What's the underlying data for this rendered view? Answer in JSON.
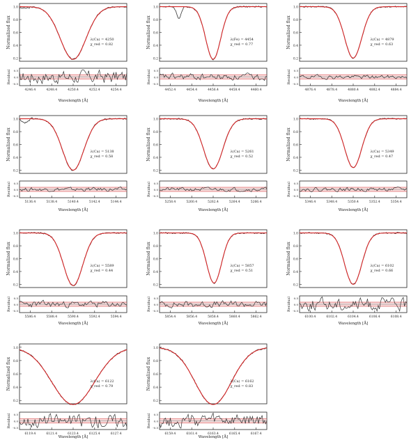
{
  "labels": {
    "ylabel_top": "Normalized flux",
    "ylabel_bottom": "Residual",
    "xlabel": "Wavelength [Å]"
  },
  "colors": {
    "observed": "#333333",
    "model": "#d62728",
    "band": "#e8a0a0"
  },
  "chart_data": [
    {
      "type": "line",
      "annotation": [
        "λ(Ca) = 4250",
        "χ_red = 0.82"
      ],
      "xticks": [
        "4246.4",
        "4248.4",
        "4250.4",
        "4252.4",
        "4254.4"
      ],
      "yticks_top": [
        "1.0",
        "0.8",
        "0.6",
        "0.4",
        "0.2"
      ],
      "ylim_top": [
        0.15,
        1.05
      ],
      "depth": 0.82,
      "width": 0.12,
      "asym": 0.0,
      "residual": "noisy_high"
    },
    {
      "type": "line",
      "annotation": [
        "λ(Fe) = 4454",
        "χ_red = 0.77"
      ],
      "xticks": [
        "4452.4",
        "4454.4",
        "4456.4",
        "4458.4",
        "4460.4"
      ],
      "yticks_top": [
        "1.0",
        "0.8",
        "0.6",
        "0.4",
        "0.2"
      ],
      "ylim_top": [
        0.15,
        1.05
      ],
      "depth": 0.82,
      "width": 0.07,
      "asym": 0.0,
      "residual": "medium"
    },
    {
      "type": "line",
      "annotation": [
        "λ(Ca) = 4879",
        "χ_red = 0.63"
      ],
      "xticks": [
        "4876.4",
        "4878.4",
        "4880.4",
        "4882.4",
        "4884.4"
      ],
      "yticks_top": [
        "1.0",
        "0.8",
        "0.6",
        "0.4",
        "0.2"
      ],
      "ylim_top": [
        0.15,
        1.05
      ],
      "depth": 0.8,
      "width": 0.08,
      "asym": 0.0,
      "residual": "low"
    },
    {
      "type": "line",
      "annotation": [
        "λ(Ca) = 5138",
        "χ_red = 0.58"
      ],
      "xticks": [
        "5136.4",
        "5138.4",
        "5140.4",
        "5142.4",
        "5144.4"
      ],
      "yticks_top": [
        "1.0",
        "0.8",
        "0.6",
        "0.4",
        "0.2"
      ],
      "ylim_top": [
        0.15,
        1.05
      ],
      "depth": 0.8,
      "width": 0.1,
      "asym": 0.0,
      "residual": "low"
    },
    {
      "type": "line",
      "annotation": [
        "λ(Ca) = 5261",
        "χ_red = 0.52"
      ],
      "xticks": [
        "5258.4",
        "5260.4",
        "5262.4",
        "5264.4",
        "5266.4"
      ],
      "yticks_top": [
        "1.0",
        "0.8",
        "0.6",
        "0.4",
        "0.2"
      ],
      "ylim_top": [
        0.15,
        1.05
      ],
      "depth": 0.78,
      "width": 0.09,
      "asym": 0.0,
      "residual": "low"
    },
    {
      "type": "line",
      "annotation": [
        "λ(Ca) = 5349",
        "χ_red = 0.47"
      ],
      "xticks": [
        "5346.4",
        "5348.4",
        "5350.4",
        "5352.4",
        "5354.4"
      ],
      "yticks_top": [
        "1.0",
        "0.8",
        "0.6",
        "0.4",
        "0.2"
      ],
      "ylim_top": [
        0.15,
        1.05
      ],
      "depth": 0.76,
      "width": 0.08,
      "asym": 0.0,
      "residual": "low"
    },
    {
      "type": "line",
      "annotation": [
        "λ(Ca) = 5589",
        "χ_red = 0.44"
      ],
      "xticks": [
        "5586.4",
        "5588.4",
        "5590.4",
        "5592.4",
        "5594.4"
      ],
      "yticks_top": [
        "1.0",
        "0.8",
        "0.6",
        "0.4",
        "0.2"
      ],
      "ylim_top": [
        0.15,
        1.05
      ],
      "depth": 0.82,
      "width": 0.09,
      "asym": 0.0,
      "residual": "medium"
    },
    {
      "type": "line",
      "annotation": [
        "λ(Ca) = 5857",
        "χ_red = 0.51"
      ],
      "xticks": [
        "5854.4",
        "5856.4",
        "5858.4",
        "5860.4",
        "5862.4"
      ],
      "yticks_top": [
        "1.0",
        "0.8",
        "0.6",
        "0.4",
        "0.2"
      ],
      "ylim_top": [
        0.15,
        1.05
      ],
      "depth": 0.78,
      "width": 0.07,
      "asym": 0.04,
      "residual": "medium"
    },
    {
      "type": "line",
      "annotation": [
        "λ(Ca) = 6102",
        "χ_red = 0.66"
      ],
      "xticks": [
        "6100.4",
        "6102.4",
        "6104.4",
        "6106.4",
        "6108.4"
      ],
      "yticks_top": [
        "1.0",
        "0.8",
        "0.6",
        "0.4",
        "0.2"
      ],
      "ylim_top": [
        0.15,
        1.05
      ],
      "depth": 0.8,
      "width": 0.08,
      "asym": 0.0,
      "residual": "noisy_high"
    },
    {
      "type": "line",
      "annotation": [
        "λ(Ca) = 6122",
        "χ_red = 0.79"
      ],
      "xticks": [
        "6119.4",
        "6121.4",
        "6123.4",
        "6125.4",
        "6127.4"
      ],
      "yticks_top": [
        "1.0",
        "0.8",
        "0.6",
        "0.4",
        "0.2"
      ],
      "ylim_top": [
        0.15,
        1.05
      ],
      "depth": 0.86,
      "width": 0.2,
      "asym": 0.0,
      "residual": "noisy_high"
    },
    {
      "type": "line",
      "annotation": [
        "λ(Ca) = 6162",
        "χ_red = 0.83"
      ],
      "xticks": [
        "6159.4",
        "6161.4",
        "6163.4",
        "6165.4",
        "6167.4"
      ],
      "yticks_top": [
        "1.0",
        "0.8",
        "0.6",
        "0.4",
        "0.2"
      ],
      "ylim_top": [
        0.15,
        1.05
      ],
      "depth": 0.86,
      "width": 0.17,
      "asym": 0.0,
      "residual": "noisy_high"
    }
  ]
}
